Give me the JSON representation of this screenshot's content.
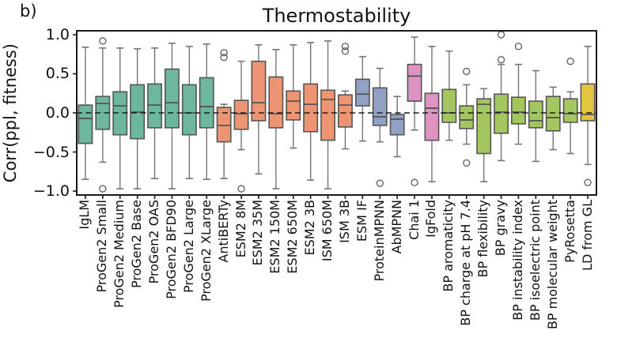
{
  "figure": {
    "panel_label": "b)",
    "title": "Thermostability",
    "ylabel": "Corr(ppl, fitness)"
  },
  "chart_data": {
    "type": "box",
    "title": "Thermostability",
    "xlabel": "",
    "ylabel": "Corr(ppl, fitness)",
    "ylim": [
      -1.05,
      1.05
    ],
    "ytick_labels": [
      "1.0",
      "0.5",
      "0.0",
      "−0.5",
      "−1.0"
    ],
    "ytick_values": [
      1.0,
      0.5,
      0.0,
      -0.5,
      -1.0
    ],
    "grid": false,
    "legend_position": "none",
    "zero_reference_line": {
      "value": 0.0,
      "style": "dashed",
      "color": "#1c1c1c"
    },
    "palette": {
      "green": "#6db69f",
      "orange": "#ed9572",
      "blue": "#91a1c6",
      "pink": "#de93c3",
      "lightgreen": "#a4c660",
      "yellow": "#e3c53e"
    },
    "box_edge_color": "#555555",
    "whisker_color": "#757575",
    "outlier_marker": "open-circle",
    "categories": [
      "IgLM",
      "ProGen2 Small",
      "ProGen2 Medium",
      "ProGen2 Base",
      "ProGen2 OAS",
      "ProGen2 BFD90",
      "ProGen2 Large",
      "ProGen2 XLarge",
      "AntiBERTy",
      "ESM2 8M",
      "ESM2 35M",
      "ESM2 150M",
      "ESM2 650M",
      "ESM2 3B",
      "ISM 650M",
      "ISM 3B",
      "ESM IF",
      "ProteinMPNN",
      "AbMPNN",
      "Chai 1",
      "IgFold",
      "BP aromaticity",
      "BP charge at pH 7.4",
      "BP flexibility",
      "BP gravy",
      "BP instability index",
      "BP isoelectric point",
      "BP molecular weight",
      "PyRosetta",
      "LD from GL"
    ],
    "boxes": [
      {
        "category": "IgLM",
        "group": "green",
        "whisker_low": -0.85,
        "q1": -0.39,
        "median": -0.07,
        "q3": 0.1,
        "whisker_high": 0.84,
        "outliers": []
      },
      {
        "category": "ProGen2 Small",
        "group": "green",
        "whisker_low": -0.63,
        "q1": -0.21,
        "median": 0.12,
        "q3": 0.21,
        "whisker_high": 0.83,
        "outliers": [
          0.92,
          -0.97
        ]
      },
      {
        "category": "ProGen2 Medium",
        "group": "green",
        "whisker_low": -0.97,
        "q1": -0.28,
        "median": 0.09,
        "q3": 0.27,
        "whisker_high": 0.83,
        "outliers": []
      },
      {
        "category": "ProGen2 Base",
        "group": "green",
        "whisker_low": -0.97,
        "q1": -0.33,
        "median": 0.01,
        "q3": 0.36,
        "whisker_high": 0.82,
        "outliers": []
      },
      {
        "category": "ProGen2 OAS",
        "group": "green",
        "whisker_low": -0.84,
        "q1": -0.19,
        "median": 0.1,
        "q3": 0.37,
        "whisker_high": 0.83,
        "outliers": []
      },
      {
        "category": "ProGen2 BFD90",
        "group": "green",
        "whisker_low": -0.97,
        "q1": -0.19,
        "median": 0.13,
        "q3": 0.56,
        "whisker_high": 0.89,
        "outliers": []
      },
      {
        "category": "ProGen2 Large",
        "group": "green",
        "whisker_low": -0.84,
        "q1": -0.28,
        "median": 0.0,
        "q3": 0.36,
        "whisker_high": 0.85,
        "outliers": []
      },
      {
        "category": "ProGen2 XLarge",
        "group": "green",
        "whisker_low": -0.85,
        "q1": -0.19,
        "median": 0.08,
        "q3": 0.45,
        "whisker_high": 0.88,
        "outliers": []
      },
      {
        "category": "AntiBERTy",
        "group": "orange",
        "whisker_low": -0.84,
        "q1": -0.37,
        "median": -0.16,
        "q3": 0.07,
        "whisker_high": 0.11,
        "outliers": [
          0.77,
          0.71
        ]
      },
      {
        "category": "ESM2 8M",
        "group": "orange",
        "whisker_low": -0.47,
        "q1": -0.21,
        "median": -0.01,
        "q3": 0.16,
        "whisker_high": 0.66,
        "outliers": [
          -0.97
        ]
      },
      {
        "category": "ESM2 35M",
        "group": "orange",
        "whisker_low": -0.78,
        "q1": -0.1,
        "median": 0.13,
        "q3": 0.66,
        "whisker_high": 0.87,
        "outliers": []
      },
      {
        "category": "ESM2 150M",
        "group": "orange",
        "whisker_low": -0.97,
        "q1": -0.19,
        "median": -0.01,
        "q3": 0.46,
        "whisker_high": 0.81,
        "outliers": []
      },
      {
        "category": "ESM2 650M",
        "group": "orange",
        "whisker_low": -0.45,
        "q1": -0.09,
        "median": 0.15,
        "q3": 0.28,
        "whisker_high": 0.87,
        "outliers": []
      },
      {
        "category": "ESM2 3B",
        "group": "orange",
        "whisker_low": -0.86,
        "q1": -0.24,
        "median": 0.11,
        "q3": 0.37,
        "whisker_high": 0.9,
        "outliers": []
      },
      {
        "category": "ISM 650M",
        "group": "orange",
        "whisker_low": -0.97,
        "q1": -0.35,
        "median": 0.17,
        "q3": 0.29,
        "whisker_high": 0.92,
        "outliers": []
      },
      {
        "category": "ISM 3B",
        "group": "orange",
        "whisker_low": -0.46,
        "q1": -0.18,
        "median": 0.1,
        "q3": 0.23,
        "whisker_high": 0.28,
        "outliers": [
          0.85,
          0.79
        ]
      },
      {
        "category": "ESM IF",
        "group": "blue",
        "whisker_low": -0.36,
        "q1": 0.09,
        "median": 0.24,
        "q3": 0.43,
        "whisker_high": 0.72,
        "outliers": []
      },
      {
        "category": "ProteinMPNN",
        "group": "blue",
        "whisker_low": -0.37,
        "q1": -0.16,
        "median": -0.05,
        "q3": 0.32,
        "whisker_high": 0.57,
        "outliers": [
          -0.9
        ]
      },
      {
        "category": "AbMPNN",
        "group": "blue",
        "whisker_low": -0.56,
        "q1": -0.28,
        "median": -0.08,
        "q3": -0.02,
        "whisker_high": 0.21,
        "outliers": []
      },
      {
        "category": "Chai 1",
        "group": "pink",
        "whisker_low": -0.22,
        "q1": 0.15,
        "median": 0.47,
        "q3": 0.62,
        "whisker_high": 0.97,
        "outliers": [
          -0.89
        ]
      },
      {
        "category": "IgFold",
        "group": "pink",
        "whisker_low": -0.88,
        "q1": -0.35,
        "median": 0.06,
        "q3": 0.25,
        "whisker_high": 0.85,
        "outliers": []
      },
      {
        "category": "BP aromaticity",
        "group": "lightgreen",
        "whisker_low": -0.35,
        "q1": -0.12,
        "median": 0.0,
        "q3": 0.3,
        "whisker_high": 0.79,
        "outliers": []
      },
      {
        "category": "BP charge at pH 7.4",
        "group": "lightgreen",
        "whisker_low": -0.4,
        "q1": -0.2,
        "median": -0.09,
        "q3": 0.09,
        "whisker_high": 0.36,
        "outliers": [
          0.53,
          -0.64
        ]
      },
      {
        "category": "BP flexibility",
        "group": "lightgreen",
        "whisker_low": -0.88,
        "q1": -0.52,
        "median": 0.11,
        "q3": 0.18,
        "whisker_high": 0.31,
        "outliers": []
      },
      {
        "category": "BP gravy",
        "group": "lightgreen",
        "whisker_low": -0.61,
        "q1": -0.26,
        "median": 0.01,
        "q3": 0.24,
        "whisker_high": 0.62,
        "outliers": [
          1.0,
          0.68
        ]
      },
      {
        "category": "BP instability index",
        "group": "lightgreen",
        "whisker_low": -0.4,
        "q1": -0.14,
        "median": 0.01,
        "q3": 0.2,
        "whisker_high": 0.62,
        "outliers": [
          0.85
        ]
      },
      {
        "category": "BP isoelectric point",
        "group": "lightgreen",
        "whisker_low": -0.62,
        "q1": -0.19,
        "median": -0.1,
        "q3": 0.15,
        "whisker_high": 0.54,
        "outliers": []
      },
      {
        "category": "BP molecular weight",
        "group": "lightgreen",
        "whisker_low": -0.47,
        "q1": -0.23,
        "median": -0.06,
        "q3": 0.21,
        "whisker_high": 0.33,
        "outliers": []
      },
      {
        "category": "PyRosetta",
        "group": "lightgreen",
        "whisker_low": -0.52,
        "q1": -0.12,
        "median": -0.01,
        "q3": 0.18,
        "whisker_high": 0.27,
        "outliers": [
          0.66
        ]
      },
      {
        "category": "LD from GL",
        "group": "yellow",
        "whisker_low": -0.66,
        "q1": -0.1,
        "median": -0.02,
        "q3": 0.37,
        "whisker_high": 0.85,
        "outliers": [
          -0.89
        ]
      }
    ]
  }
}
